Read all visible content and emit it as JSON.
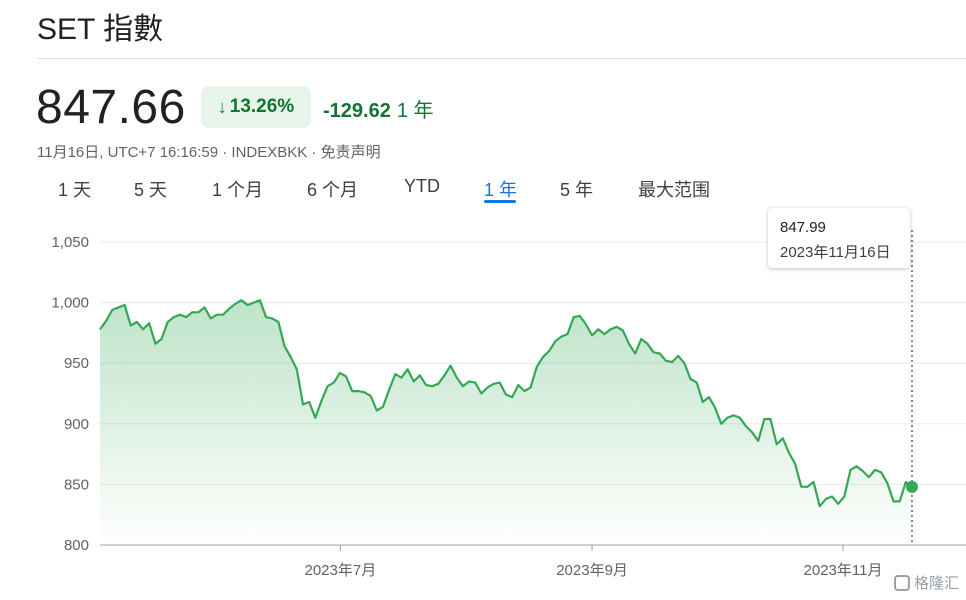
{
  "header": {
    "title": "SET 指數"
  },
  "quote": {
    "price": "847.66",
    "change_percent": "13.26%",
    "change_direction": "down",
    "change_abs": "-129.62",
    "change_period": "1 年",
    "meta": "11月16日, UTC+7 16:16:59 · INDEXBKK · 免责声明"
  },
  "tabs": [
    "1 天",
    "5 天",
    "1 个月",
    "6 个月",
    "YTD",
    "1 年",
    "5 年",
    "最大范围"
  ],
  "active_tab": "1 年",
  "tooltip": {
    "value": "847.99",
    "date": "2023年11月16日"
  },
  "watermark": "格隆汇",
  "colors": {
    "line": "#34a853",
    "positive_text": "#137333",
    "badge_bg": "#e6f4ea",
    "active_tab": "#1a73e8"
  },
  "chart_data": {
    "type": "area",
    "ylim": [
      800,
      1050
    ],
    "yticks": [
      1050,
      1000,
      950,
      900,
      850,
      800
    ],
    "ytick_labels": [
      "1,050",
      "1,000",
      "950",
      "900",
      "850",
      "800"
    ],
    "xtick_labels": [
      "2023年7月",
      "2023年9月",
      "2023年11月"
    ],
    "grid": true,
    "series": [
      {
        "values": [
          978,
          985,
          994,
          996,
          998,
          981,
          984,
          978,
          983,
          966,
          970,
          984,
          988,
          990,
          988,
          992,
          992,
          996,
          987,
          990,
          990,
          995,
          999,
          1002,
          998,
          1000,
          1002,
          988,
          987,
          984,
          964,
          955,
          945,
          916,
          918,
          905,
          919,
          931,
          934,
          942,
          939,
          927,
          927,
          926,
          923,
          911,
          914,
          928,
          941,
          938,
          945,
          935,
          940,
          932,
          931,
          933,
          940,
          948,
          938,
          931,
          935,
          934,
          925,
          930,
          933,
          934,
          924,
          922,
          932,
          927,
          930,
          947,
          955,
          960,
          968,
          972,
          974,
          988,
          989,
          982,
          973,
          978,
          974,
          978,
          980,
          977,
          966,
          958,
          970,
          966,
          959,
          958,
          952,
          951,
          956,
          950,
          937,
          934,
          918,
          922,
          913,
          900,
          905,
          907,
          905,
          898,
          893,
          886,
          904,
          904,
          883,
          888,
          876,
          867,
          848,
          848,
          852,
          832,
          838,
          840,
          834,
          840,
          862,
          865,
          861,
          856,
          862,
          860,
          851,
          836,
          836,
          852,
          848
        ]
      }
    ],
    "last_point": {
      "value": 847.99,
      "date": "2023年11月16日"
    }
  }
}
